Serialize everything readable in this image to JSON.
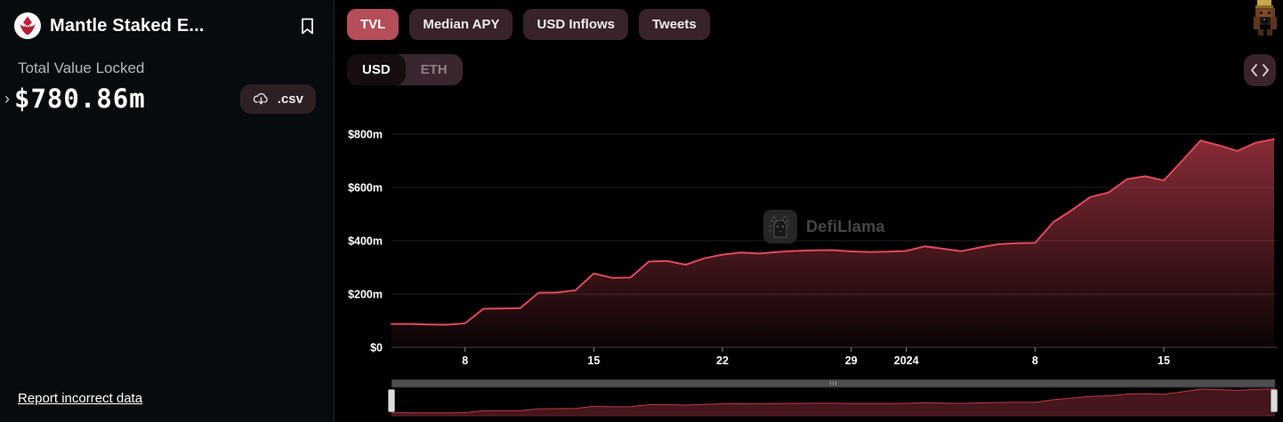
{
  "sidebar": {
    "protocol_name": "Mantle Staked E...",
    "tvl_label": "Total Value Locked",
    "tvl_value": "$780.86m",
    "csv_button": ".csv",
    "report_link": "Report incorrect data"
  },
  "toolbar": {
    "tabs": [
      {
        "label": "TVL",
        "active": true
      },
      {
        "label": "Median APY",
        "active": false
      },
      {
        "label": "USD Inflows",
        "active": false
      },
      {
        "label": "Tweets",
        "active": false
      }
    ],
    "denominations": [
      {
        "label": "USD",
        "active": true
      },
      {
        "label": "ETH",
        "active": false
      }
    ]
  },
  "watermark_label": "DefiLlama",
  "colors": {
    "accent_line": "#e3495b",
    "active_tab": "#b54d5a",
    "pill_background": "#38232b",
    "page_background": "#000000"
  },
  "chart_data": {
    "type": "area",
    "title": "Total Value Locked (USD)",
    "unit": "USD millions",
    "ylim": [
      0,
      800
    ],
    "grid": true,
    "legend": false,
    "line_color": "#e3495b",
    "x": [
      "2023-12-04",
      "2023-12-05",
      "2023-12-06",
      "2023-12-07",
      "2023-12-08",
      "2023-12-09",
      "2023-12-10",
      "2023-12-11",
      "2023-12-12",
      "2023-12-13",
      "2023-12-14",
      "2023-12-15",
      "2023-12-16",
      "2023-12-17",
      "2023-12-18",
      "2023-12-19",
      "2023-12-20",
      "2023-12-21",
      "2023-12-22",
      "2023-12-23",
      "2023-12-24",
      "2023-12-25",
      "2023-12-26",
      "2023-12-27",
      "2023-12-28",
      "2023-12-29",
      "2023-12-30",
      "2023-12-31",
      "2024-01-01",
      "2024-01-02",
      "2024-01-03",
      "2024-01-04",
      "2024-01-05",
      "2024-01-06",
      "2024-01-07",
      "2024-01-08",
      "2024-01-09",
      "2024-01-10",
      "2024-01-11",
      "2024-01-12",
      "2024-01-13",
      "2024-01-14",
      "2024-01-15",
      "2024-01-16",
      "2024-01-17",
      "2024-01-18",
      "2024-01-19",
      "2024-01-20",
      "2024-01-21"
    ],
    "values": [
      88,
      88,
      86,
      85,
      90,
      145,
      146,
      147,
      205,
      206,
      214,
      277,
      261,
      262,
      322,
      324,
      310,
      334,
      348,
      356,
      352,
      358,
      362,
      364,
      365,
      360,
      358,
      359,
      362,
      379,
      370,
      361,
      375,
      387,
      391,
      392,
      470,
      515,
      564,
      581,
      631,
      642,
      626,
      700,
      776,
      758,
      737,
      768,
      781
    ],
    "yticks": [
      {
        "value": 0,
        "label": "$0"
      },
      {
        "value": 200,
        "label": "$200m"
      },
      {
        "value": 400,
        "label": "$400m"
      },
      {
        "value": 600,
        "label": "$600m"
      },
      {
        "value": 800,
        "label": "$800m"
      }
    ],
    "xticks": [
      {
        "index": 4,
        "label": "8",
        "bold": false
      },
      {
        "index": 11,
        "label": "15",
        "bold": false
      },
      {
        "index": 18,
        "label": "22",
        "bold": false
      },
      {
        "index": 25,
        "label": "29",
        "bold": false
      },
      {
        "index": 28,
        "label": "2024",
        "bold": true
      },
      {
        "index": 35,
        "label": "8",
        "bold": false
      },
      {
        "index": 42,
        "label": "15",
        "bold": false
      }
    ]
  }
}
